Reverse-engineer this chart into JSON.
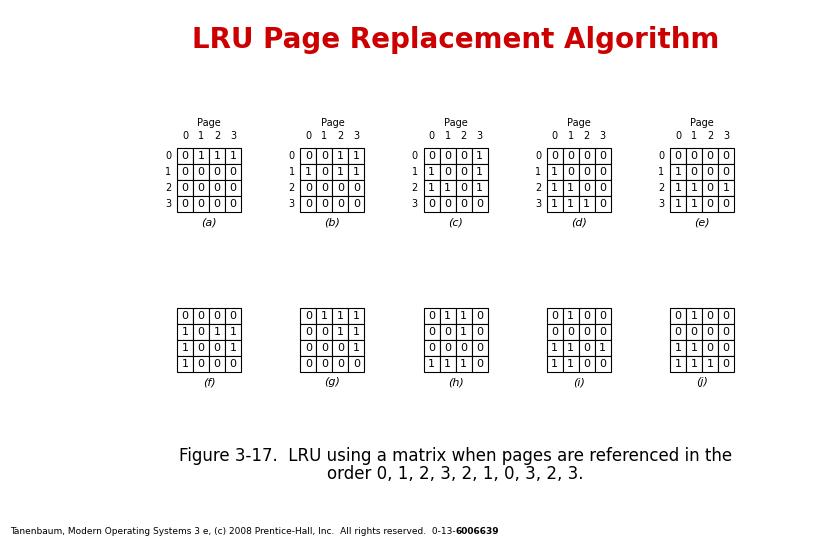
{
  "title": "LRU Page Replacement Algorithm",
  "title_color": "#cc0000",
  "title_fontsize": 20,
  "matrices": [
    {
      "label": "(a)",
      "has_header": true,
      "data": [
        [
          0,
          1,
          1,
          1
        ],
        [
          0,
          0,
          0,
          0
        ],
        [
          0,
          0,
          0,
          0
        ],
        [
          0,
          0,
          0,
          0
        ]
      ]
    },
    {
      "label": "(b)",
      "has_header": true,
      "data": [
        [
          0,
          0,
          1,
          1
        ],
        [
          1,
          0,
          1,
          1
        ],
        [
          0,
          0,
          0,
          0
        ],
        [
          0,
          0,
          0,
          0
        ]
      ]
    },
    {
      "label": "(c)",
      "has_header": true,
      "data": [
        [
          0,
          0,
          0,
          1
        ],
        [
          1,
          0,
          0,
          1
        ],
        [
          1,
          1,
          0,
          1
        ],
        [
          0,
          0,
          0,
          0
        ]
      ]
    },
    {
      "label": "(d)",
      "has_header": true,
      "data": [
        [
          0,
          0,
          0,
          0
        ],
        [
          1,
          0,
          0,
          0
        ],
        [
          1,
          1,
          0,
          0
        ],
        [
          1,
          1,
          1,
          0
        ]
      ]
    },
    {
      "label": "(e)",
      "has_header": true,
      "data": [
        [
          0,
          0,
          0,
          0
        ],
        [
          1,
          0,
          0,
          0
        ],
        [
          1,
          1,
          0,
          1
        ],
        [
          1,
          1,
          0,
          0
        ]
      ]
    },
    {
      "label": "(f)",
      "has_header": false,
      "data": [
        [
          0,
          0,
          0,
          0
        ],
        [
          1,
          0,
          1,
          1
        ],
        [
          1,
          0,
          0,
          1
        ],
        [
          1,
          0,
          0,
          0
        ]
      ]
    },
    {
      "label": "(g)",
      "has_header": false,
      "data": [
        [
          0,
          1,
          1,
          1
        ],
        [
          0,
          0,
          1,
          1
        ],
        [
          0,
          0,
          0,
          1
        ],
        [
          0,
          0,
          0,
          0
        ]
      ]
    },
    {
      "label": "(h)",
      "has_header": false,
      "data": [
        [
          0,
          1,
          1,
          0
        ],
        [
          0,
          0,
          1,
          0
        ],
        [
          0,
          0,
          0,
          0
        ],
        [
          1,
          1,
          1,
          0
        ]
      ]
    },
    {
      "label": "(i)",
      "has_header": false,
      "data": [
        [
          0,
          1,
          0,
          0
        ],
        [
          0,
          0,
          0,
          0
        ],
        [
          1,
          1,
          0,
          1
        ],
        [
          1,
          1,
          0,
          0
        ]
      ]
    },
    {
      "label": "(j)",
      "has_header": false,
      "data": [
        [
          0,
          1,
          0,
          0
        ],
        [
          0,
          0,
          0,
          0
        ],
        [
          1,
          1,
          0,
          0
        ],
        [
          1,
          1,
          1,
          0
        ]
      ]
    }
  ],
  "row_labels": [
    "0",
    "1",
    "2",
    "3"
  ],
  "col_labels": [
    "0",
    "1",
    "2",
    "3"
  ],
  "page_label": "Page",
  "caption_line1": "Figure 3-17.  LRU using a matrix when pages are referenced in the",
  "caption_line2": "order 0, 1, 2, 3, 2, 1, 0, 3, 2, 3.",
  "footer_normal": "Tanenbaum, Modern Operating Systems 3 e, (c) 2008 Prentice-Hall, Inc.  All rights reserved.  0-13-",
  "footer_bold": "6006639",
  "bg_color": "#ffffff"
}
